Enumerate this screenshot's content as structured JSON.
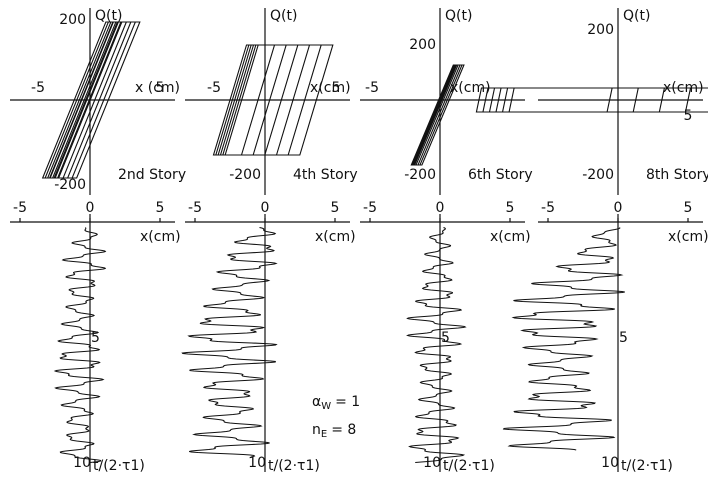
{
  "panels": [
    {
      "story": "2nd Story",
      "hysteresis": {
        "y_label": "Q(t)",
        "x_label": "x (cm)",
        "x_labels": [
          "-5",
          "5"
        ],
        "y_labels": [
          "200",
          "-200"
        ]
      },
      "history": {
        "x_labels": [
          "-5",
          "0",
          "5"
        ],
        "x_label": "x(cm)",
        "t_labels": [
          "5",
          "10"
        ],
        "t_label": "t/(2·τ1)"
      }
    },
    {
      "story": "4th Story",
      "hysteresis": {
        "y_label": "Q(t)",
        "x_label": "x(cm)",
        "x_labels": [
          "-5",
          "5"
        ],
        "y_labels": [
          "-200"
        ]
      },
      "history": {
        "x_labels": [
          "-5",
          "0",
          "5"
        ],
        "x_label": "x(cm)",
        "t_labels": [
          "10"
        ],
        "t_label": "t/(2·τ1)"
      }
    },
    {
      "story": "6th Story",
      "hysteresis": {
        "y_label": "Q(t)",
        "x_label": "x(cm)",
        "x_labels": [
          "-5"
        ],
        "y_labels": [
          "200",
          "-200"
        ]
      },
      "history": {
        "x_labels": [
          "-5",
          "0",
          "5"
        ],
        "x_label": "x(cm)",
        "t_labels": [
          "5",
          "10"
        ],
        "t_label": "t/(2·τ1)"
      }
    },
    {
      "story": "8th Story",
      "hysteresis": {
        "y_label": "Q(t)",
        "x_label": "x(cm)",
        "x_labels": [
          "5"
        ],
        "y_labels": [
          "200",
          "-200"
        ]
      },
      "history": {
        "x_labels": [
          "-5",
          "0",
          "5"
        ],
        "x_label": "x(cm)",
        "t_labels": [
          "5",
          "10"
        ],
        "t_label": "t/(2·τ1)"
      }
    }
  ],
  "parameters": [
    {
      "symbol": "α",
      "subscript": "W",
      "value": "= 1"
    },
    {
      "symbol": "n",
      "subscript": "E",
      "value": "= 8"
    }
  ]
}
